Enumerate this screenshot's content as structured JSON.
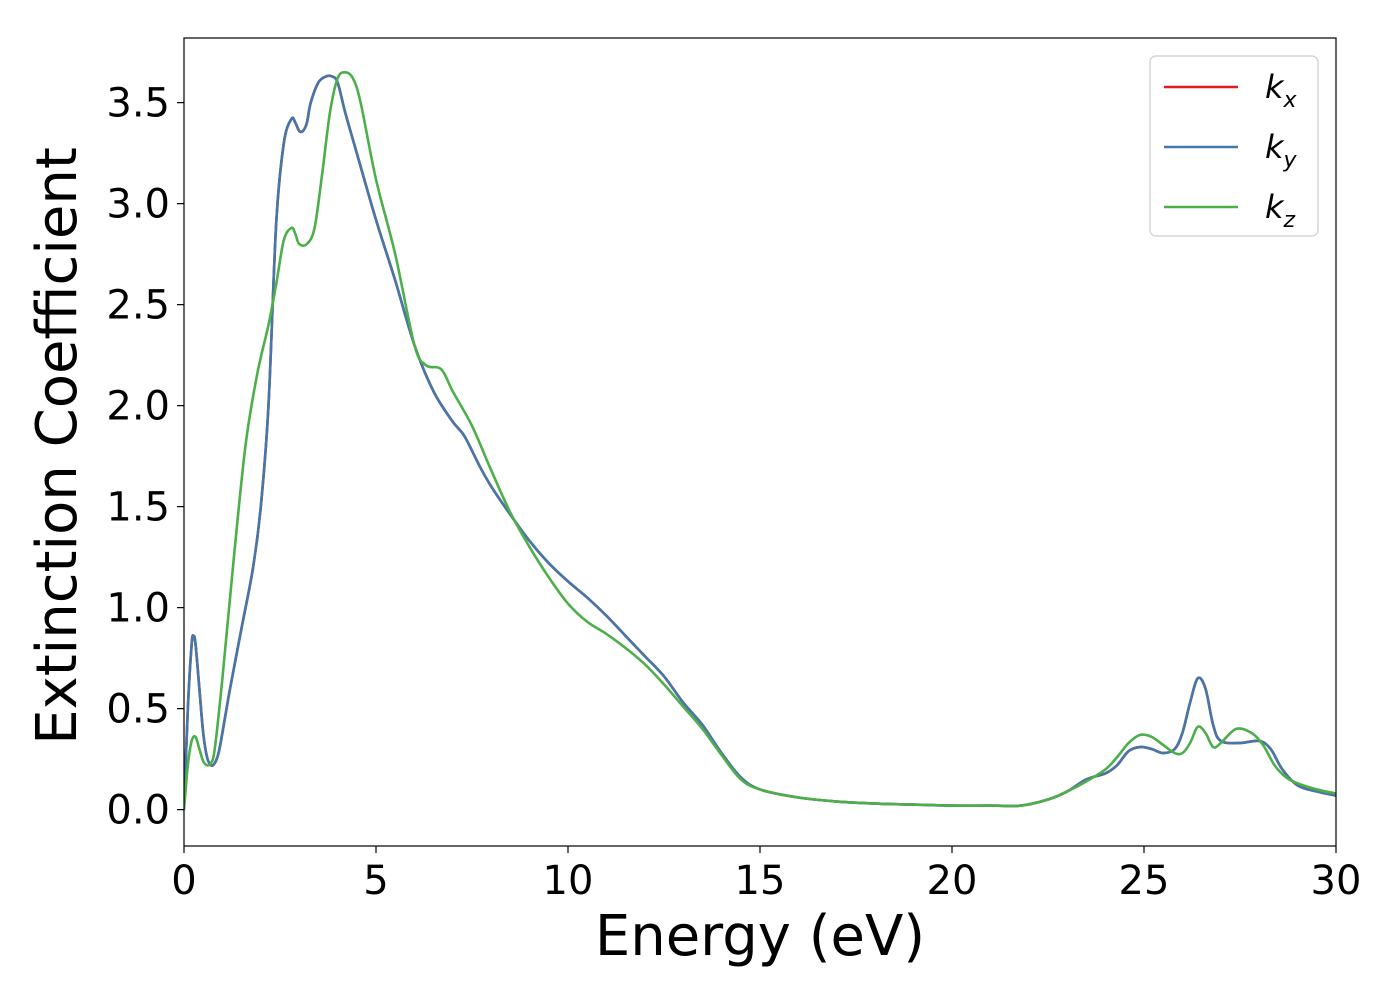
{
  "chart_data": {
    "type": "line",
    "title": "",
    "xlabel": "Energy (eV)",
    "ylabel": "Extinction Coefficient",
    "xlim": [
      0,
      30
    ],
    "ylim": [
      -0.18,
      3.82
    ],
    "xticks": [
      0,
      5,
      10,
      15,
      20,
      25,
      30
    ],
    "yticks": [
      0.0,
      0.5,
      1.0,
      1.5,
      2.0,
      2.5,
      3.0,
      3.5
    ],
    "grid": false,
    "legend_position": "top-right",
    "series": [
      {
        "name": "k",
        "subscript": "x",
        "color": "#e41a1c",
        "x": [
          0,
          0.1,
          0.2,
          0.25,
          0.3,
          0.4,
          0.5,
          0.6,
          0.7,
          0.8,
          0.9,
          1.0,
          1.2,
          1.5,
          1.8,
          2.0,
          2.2,
          2.4,
          2.6,
          2.8,
          2.9,
          3.0,
          3.1,
          3.2,
          3.3,
          3.5,
          3.7,
          3.85,
          4.0,
          4.2,
          4.5,
          5.0,
          5.5,
          6.0,
          6.5,
          7.0,
          7.3,
          7.7,
          8.0,
          8.5,
          9.0,
          9.5,
          10.0,
          10.5,
          11.0,
          11.5,
          12.0,
          12.5,
          13.0,
          13.5,
          14.0,
          14.5,
          15.0,
          16.0,
          17.0,
          18.0,
          19.0,
          20.0,
          21.0,
          21.8,
          22.5,
          23.0,
          23.5,
          24.0,
          24.3,
          24.6,
          24.9,
          25.2,
          25.5,
          25.8,
          26.0,
          26.2,
          26.4,
          26.6,
          26.8,
          27.0,
          27.5,
          28.0,
          28.3,
          28.6,
          29.0,
          29.5,
          30.0
        ],
        "y": [
          0.0,
          0.5,
          0.82,
          0.86,
          0.82,
          0.6,
          0.38,
          0.26,
          0.22,
          0.23,
          0.28,
          0.38,
          0.6,
          0.9,
          1.2,
          1.5,
          2.0,
          2.9,
          3.3,
          3.42,
          3.4,
          3.36,
          3.36,
          3.4,
          3.5,
          3.6,
          3.63,
          3.63,
          3.6,
          3.45,
          3.25,
          2.92,
          2.62,
          2.3,
          2.07,
          1.92,
          1.85,
          1.7,
          1.6,
          1.46,
          1.33,
          1.22,
          1.13,
          1.05,
          0.96,
          0.86,
          0.76,
          0.66,
          0.53,
          0.42,
          0.28,
          0.16,
          0.1,
          0.06,
          0.04,
          0.03,
          0.025,
          0.02,
          0.02,
          0.02,
          0.05,
          0.09,
          0.15,
          0.18,
          0.22,
          0.29,
          0.31,
          0.3,
          0.28,
          0.3,
          0.38,
          0.53,
          0.65,
          0.6,
          0.42,
          0.34,
          0.33,
          0.34,
          0.3,
          0.2,
          0.12,
          0.09,
          0.07
        ]
      },
      {
        "name": "k",
        "subscript": "y",
        "color": "#4477aa",
        "x": [
          0,
          0.1,
          0.2,
          0.25,
          0.3,
          0.4,
          0.5,
          0.6,
          0.7,
          0.8,
          0.9,
          1.0,
          1.2,
          1.5,
          1.8,
          2.0,
          2.2,
          2.4,
          2.6,
          2.8,
          2.9,
          3.0,
          3.1,
          3.2,
          3.3,
          3.5,
          3.7,
          3.85,
          4.0,
          4.2,
          4.5,
          5.0,
          5.5,
          6.0,
          6.5,
          7.0,
          7.3,
          7.7,
          8.0,
          8.5,
          9.0,
          9.5,
          10.0,
          10.5,
          11.0,
          11.5,
          12.0,
          12.5,
          13.0,
          13.5,
          14.0,
          14.5,
          15.0,
          16.0,
          17.0,
          18.0,
          19.0,
          20.0,
          21.0,
          21.8,
          22.5,
          23.0,
          23.5,
          24.0,
          24.3,
          24.6,
          24.9,
          25.2,
          25.5,
          25.8,
          26.0,
          26.2,
          26.4,
          26.6,
          26.8,
          27.0,
          27.5,
          28.0,
          28.3,
          28.6,
          29.0,
          29.5,
          30.0
        ],
        "y": [
          0.0,
          0.5,
          0.82,
          0.86,
          0.82,
          0.6,
          0.38,
          0.26,
          0.22,
          0.23,
          0.28,
          0.38,
          0.6,
          0.9,
          1.2,
          1.5,
          2.0,
          2.9,
          3.3,
          3.42,
          3.4,
          3.36,
          3.36,
          3.4,
          3.5,
          3.6,
          3.63,
          3.63,
          3.6,
          3.45,
          3.25,
          2.92,
          2.62,
          2.3,
          2.07,
          1.92,
          1.85,
          1.7,
          1.6,
          1.46,
          1.33,
          1.22,
          1.13,
          1.05,
          0.96,
          0.86,
          0.76,
          0.66,
          0.53,
          0.42,
          0.28,
          0.16,
          0.1,
          0.06,
          0.04,
          0.03,
          0.025,
          0.02,
          0.02,
          0.02,
          0.05,
          0.09,
          0.15,
          0.18,
          0.22,
          0.29,
          0.31,
          0.3,
          0.28,
          0.3,
          0.38,
          0.53,
          0.65,
          0.6,
          0.42,
          0.34,
          0.33,
          0.34,
          0.3,
          0.2,
          0.12,
          0.09,
          0.07
        ]
      },
      {
        "name": "k",
        "subscript": "z",
        "color": "#4daf4a",
        "x": [
          0,
          0.1,
          0.2,
          0.3,
          0.4,
          0.5,
          0.6,
          0.7,
          0.8,
          1.0,
          1.3,
          1.6,
          1.9,
          2.2,
          2.4,
          2.6,
          2.8,
          2.9,
          3.0,
          3.2,
          3.4,
          3.6,
          3.8,
          4.0,
          4.2,
          4.4,
          4.6,
          5.0,
          5.5,
          6.0,
          6.3,
          6.7,
          7.0,
          7.5,
          8.0,
          8.5,
          9.0,
          9.5,
          10.0,
          10.5,
          11.0,
          11.5,
          12.0,
          12.5,
          13.0,
          13.5,
          14.0,
          14.5,
          15.0,
          16.0,
          17.0,
          18.0,
          19.0,
          20.0,
          21.0,
          21.8,
          22.5,
          23.0,
          23.5,
          24.0,
          24.3,
          24.6,
          24.9,
          25.2,
          25.5,
          25.8,
          26.0,
          26.2,
          26.4,
          26.6,
          26.8,
          27.0,
          27.4,
          27.8,
          28.1,
          28.4,
          28.7,
          29.0,
          29.5,
          30.0
        ],
        "y": [
          0.0,
          0.22,
          0.34,
          0.36,
          0.3,
          0.24,
          0.22,
          0.23,
          0.3,
          0.65,
          1.25,
          1.8,
          2.15,
          2.4,
          2.6,
          2.82,
          2.88,
          2.85,
          2.8,
          2.8,
          2.88,
          3.15,
          3.45,
          3.62,
          3.65,
          3.62,
          3.5,
          3.12,
          2.75,
          2.3,
          2.2,
          2.18,
          2.07,
          1.9,
          1.68,
          1.47,
          1.3,
          1.15,
          1.02,
          0.93,
          0.87,
          0.8,
          0.72,
          0.62,
          0.51,
          0.4,
          0.27,
          0.15,
          0.1,
          0.06,
          0.04,
          0.03,
          0.025,
          0.02,
          0.02,
          0.02,
          0.05,
          0.09,
          0.14,
          0.2,
          0.26,
          0.33,
          0.37,
          0.36,
          0.32,
          0.28,
          0.28,
          0.33,
          0.41,
          0.38,
          0.31,
          0.33,
          0.4,
          0.38,
          0.32,
          0.22,
          0.16,
          0.13,
          0.1,
          0.08
        ]
      }
    ]
  }
}
